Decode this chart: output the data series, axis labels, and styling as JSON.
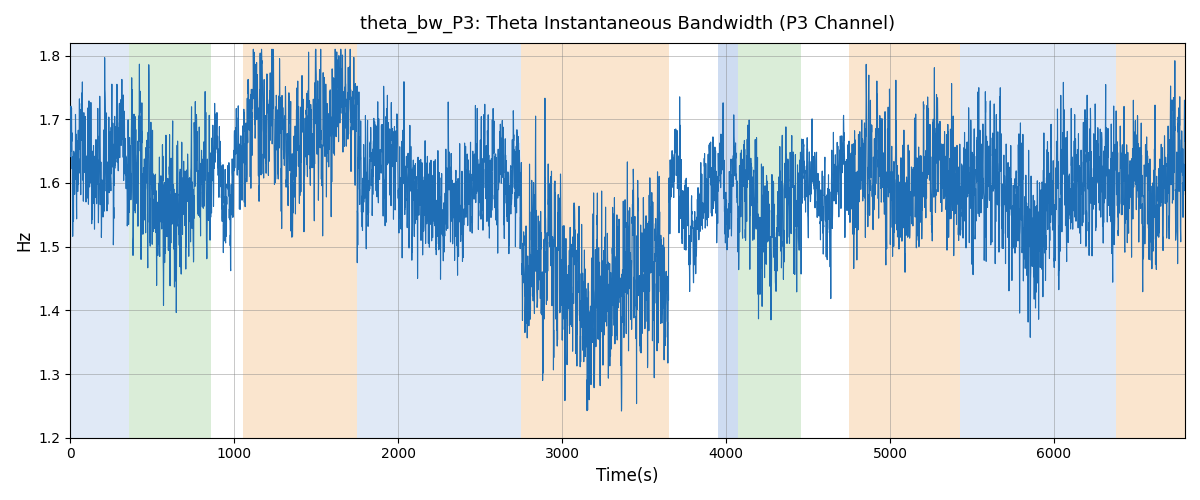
{
  "title": "theta_bw_P3: Theta Instantaneous Bandwidth (P3 Channel)",
  "xlabel": "Time(s)",
  "ylabel": "Hz",
  "xlim": [
    0,
    6800
  ],
  "ylim": [
    1.2,
    1.82
  ],
  "line_color": "#1f6eb5",
  "line_width": 0.8,
  "background_color": "#ffffff",
  "seed": 42,
  "regions": [
    {
      "xmin": 0,
      "xmax": 355,
      "color": "#aec6e8",
      "alpha": 0.38
    },
    {
      "xmin": 355,
      "xmax": 855,
      "color": "#a8d5a2",
      "alpha": 0.42
    },
    {
      "xmin": 1050,
      "xmax": 1750,
      "color": "#f5c99a",
      "alpha": 0.48
    },
    {
      "xmin": 1750,
      "xmax": 2750,
      "color": "#aec6e8",
      "alpha": 0.38
    },
    {
      "xmin": 2750,
      "xmax": 3650,
      "color": "#f5c99a",
      "alpha": 0.48
    },
    {
      "xmin": 3950,
      "xmax": 4070,
      "color": "#aec6e8",
      "alpha": 0.6
    },
    {
      "xmin": 4070,
      "xmax": 4460,
      "color": "#a8d5a2",
      "alpha": 0.42
    },
    {
      "xmin": 4750,
      "xmax": 5430,
      "color": "#f5c99a",
      "alpha": 0.48
    },
    {
      "xmin": 5430,
      "xmax": 6380,
      "color": "#aec6e8",
      "alpha": 0.38
    },
    {
      "xmin": 6380,
      "xmax": 6800,
      "color": "#f5c99a",
      "alpha": 0.48
    }
  ],
  "segments": [
    {
      "start": 0,
      "end": 355,
      "mean": 1.63,
      "std": 0.055,
      "trend": 0.0
    },
    {
      "start": 355,
      "end": 855,
      "mean": 1.595,
      "std": 0.06,
      "trend": -0.03
    },
    {
      "start": 855,
      "end": 1050,
      "mean": 1.585,
      "std": 0.04,
      "trend": 0.01
    },
    {
      "start": 1050,
      "end": 1750,
      "mean": 1.665,
      "std": 0.055,
      "trend": 0.02
    },
    {
      "start": 1750,
      "end": 2750,
      "mean": 1.61,
      "std": 0.05,
      "trend": -0.04
    },
    {
      "start": 2750,
      "end": 3650,
      "mean": 1.47,
      "std": 0.07,
      "trend": -0.05
    },
    {
      "start": 3650,
      "end": 3950,
      "mean": 1.575,
      "std": 0.04,
      "trend": 0.0
    },
    {
      "start": 3950,
      "end": 4070,
      "mean": 1.595,
      "std": 0.03,
      "trend": 0.0
    },
    {
      "start": 4070,
      "end": 4460,
      "mean": 1.565,
      "std": 0.055,
      "trend": 0.0
    },
    {
      "start": 4460,
      "end": 4750,
      "mean": 1.58,
      "std": 0.04,
      "trend": 0.01
    },
    {
      "start": 4750,
      "end": 5430,
      "mean": 1.605,
      "std": 0.055,
      "trend": 0.0
    },
    {
      "start": 5430,
      "end": 6380,
      "mean": 1.58,
      "std": 0.06,
      "trend": 0.0
    },
    {
      "start": 6380,
      "end": 6800,
      "mean": 1.6,
      "std": 0.055,
      "trend": 0.0
    }
  ],
  "figsize": [
    12.0,
    5.0
  ],
  "dpi": 100
}
